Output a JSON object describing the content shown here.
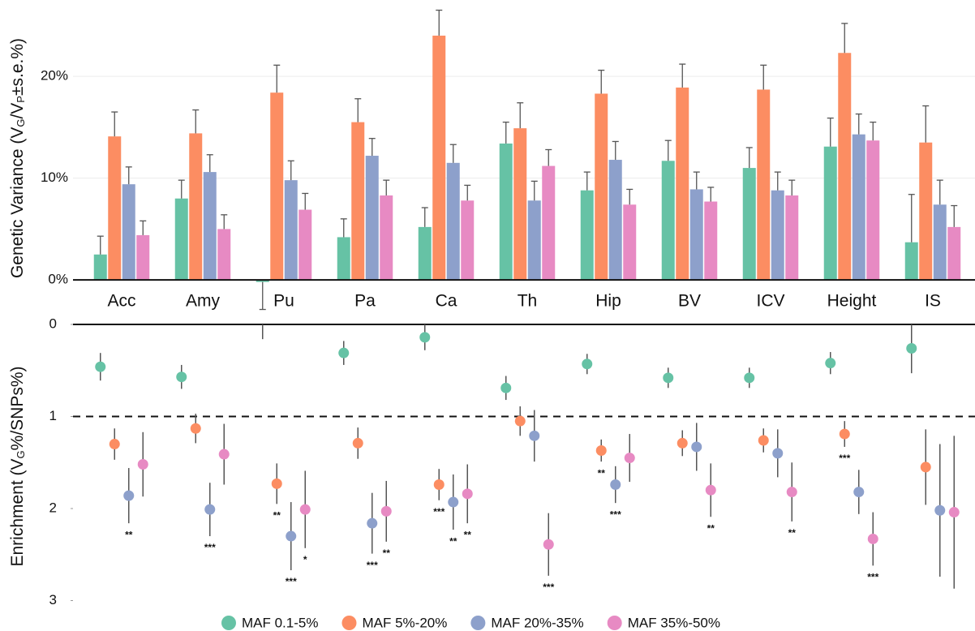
{
  "chart_data": [
    {
      "type": "bar",
      "y_label": [
        {
          "text": "Genetic Variance (V"
        },
        {
          "text": "G",
          "sub": true
        },
        {
          "text": "/V"
        },
        {
          "text": "P",
          "sub": true
        },
        {
          "text": "±s.e.%)"
        }
      ],
      "categories": [
        "Acc",
        "Amy",
        "Pu",
        "Pa",
        "Ca",
        "Th",
        "Hip",
        "BV",
        "ICV",
        "Height",
        "IS"
      ],
      "series": [
        {
          "color": "#66c2a5",
          "values": [
            2.5,
            8.0,
            -0.2,
            4.2,
            5.2,
            13.4,
            8.8,
            11.7,
            11.0,
            13.1,
            3.7
          ],
          "errors": [
            1.8,
            1.8,
            2.7,
            1.8,
            1.9,
            2.1,
            1.8,
            2.0,
            2.0,
            2.8,
            4.7
          ]
        },
        {
          "color": "#fc8d62",
          "values": [
            14.1,
            14.4,
            18.4,
            15.5,
            24.0,
            14.9,
            18.3,
            18.9,
            18.7,
            22.3,
            13.5
          ],
          "errors": [
            2.4,
            2.3,
            2.7,
            2.3,
            2.5,
            2.5,
            2.3,
            2.3,
            2.4,
            2.9,
            3.6
          ]
        },
        {
          "color": "#8da0cb",
          "values": [
            9.4,
            10.6,
            9.8,
            12.2,
            11.5,
            7.8,
            11.8,
            8.9,
            8.8,
            14.3,
            7.4
          ],
          "errors": [
            1.7,
            1.7,
            1.9,
            1.7,
            1.8,
            1.9,
            1.8,
            1.7,
            1.8,
            2.0,
            2.4
          ]
        },
        {
          "color": "#e78ac3",
          "values": [
            4.4,
            5.0,
            6.9,
            8.3,
            7.8,
            11.2,
            7.4,
            7.7,
            8.3,
            13.7,
            5.2
          ],
          "errors": [
            1.4,
            1.4,
            1.6,
            1.5,
            1.5,
            1.6,
            1.5,
            1.4,
            1.5,
            1.8,
            2.1
          ]
        }
      ],
      "ylim": [
        -3,
        27.5
      ],
      "yticks": [
        {
          "value": 0,
          "label": "0%"
        },
        {
          "value": 10,
          "label": "10%"
        },
        {
          "value": 20,
          "label": "20%"
        }
      ],
      "grid": true
    },
    {
      "type": "dot",
      "y_label": [
        {
          "text": "Enrichment (V"
        },
        {
          "text": "G",
          "sub": true
        },
        {
          "text": "%/SNPs%)"
        }
      ],
      "series": [
        {
          "name": "MAF 0.1-5%",
          "color": "#66c2a5",
          "values": [
            0.46,
            0.57,
            -0.1,
            0.31,
            0.14,
            0.69,
            0.43,
            0.58,
            0.58,
            0.42,
            0.26
          ],
          "errors": [
            0.15,
            0.13,
            0.26,
            0.13,
            0.14,
            0.13,
            0.11,
            0.11,
            0.11,
            0.12,
            0.27
          ],
          "stars": [
            null,
            null,
            null,
            null,
            null,
            null,
            null,
            null,
            null,
            null,
            null
          ]
        },
        {
          "name": "MAF 5%-20%",
          "color": "#fc8d62",
          "values": [
            1.3,
            1.13,
            1.73,
            1.29,
            1.74,
            1.05,
            1.37,
            1.29,
            1.26,
            1.19,
            1.55
          ],
          "errors": [
            0.17,
            0.16,
            0.22,
            0.17,
            0.17,
            0.16,
            0.12,
            0.14,
            0.13,
            0.14,
            0.41
          ],
          "stars": [
            null,
            null,
            "**",
            null,
            "***",
            null,
            "**",
            null,
            null,
            "***",
            null
          ]
        },
        {
          "name": "MAF 20%-35%",
          "color": "#8da0cb",
          "values": [
            1.86,
            2.01,
            2.3,
            2.16,
            1.93,
            1.21,
            1.74,
            1.33,
            1.4,
            1.82,
            2.02
          ],
          "errors": [
            0.3,
            0.29,
            0.37,
            0.33,
            0.3,
            0.28,
            0.2,
            0.26,
            0.26,
            0.24,
            0.72
          ],
          "stars": [
            "**",
            "***",
            "***",
            "***",
            "**",
            null,
            "***",
            null,
            null,
            null,
            null
          ]
        },
        {
          "name": "MAF 35%-50%",
          "color": "#e78ac3",
          "values": [
            1.52,
            1.41,
            2.01,
            2.03,
            1.84,
            2.39,
            1.45,
            1.8,
            1.82,
            2.33,
            2.04
          ],
          "errors": [
            0.35,
            0.33,
            0.42,
            0.33,
            0.32,
            0.34,
            0.26,
            0.29,
            0.32,
            0.29,
            0.83
          ],
          "stars": [
            null,
            null,
            "*",
            "**",
            "**",
            "***",
            null,
            "**",
            "**",
            "***",
            null
          ]
        }
      ],
      "ylim": [
        0,
        3
      ],
      "inverted": true,
      "yticks": [
        0,
        1,
        2,
        3
      ],
      "reference_line": 1
    }
  ]
}
